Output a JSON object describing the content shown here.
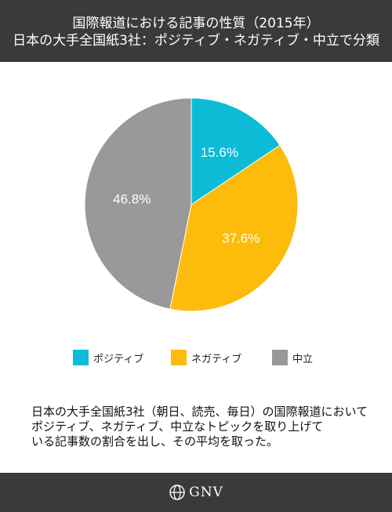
{
  "header": {
    "line1": "国際報道における記事の性質（2015年）",
    "line2": "日本の大手全国紙3社：ポジティブ・ネガティブ・中立で分類"
  },
  "chart_data": {
    "type": "pie",
    "categories": [
      "ポジティブ",
      "ネガティブ",
      "中立"
    ],
    "values": [
      15.6,
      37.6,
      46.8
    ],
    "labels": [
      "15.6%",
      "37.6%",
      "46.8%"
    ],
    "colors": [
      "#0cbcd6",
      "#fdbc0b",
      "#999999"
    ],
    "legend": "bottom"
  },
  "note": "日本の大手全国紙3社（朝日、読売、毎日）の国際報道において\nポジティブ、ネガティブ、中立なトピックを取り上げて\nいる記事数の割合を出し、その平均を取った。",
  "footer": {
    "logo_text": "GNV",
    "logo_icon": "globe-icon"
  }
}
